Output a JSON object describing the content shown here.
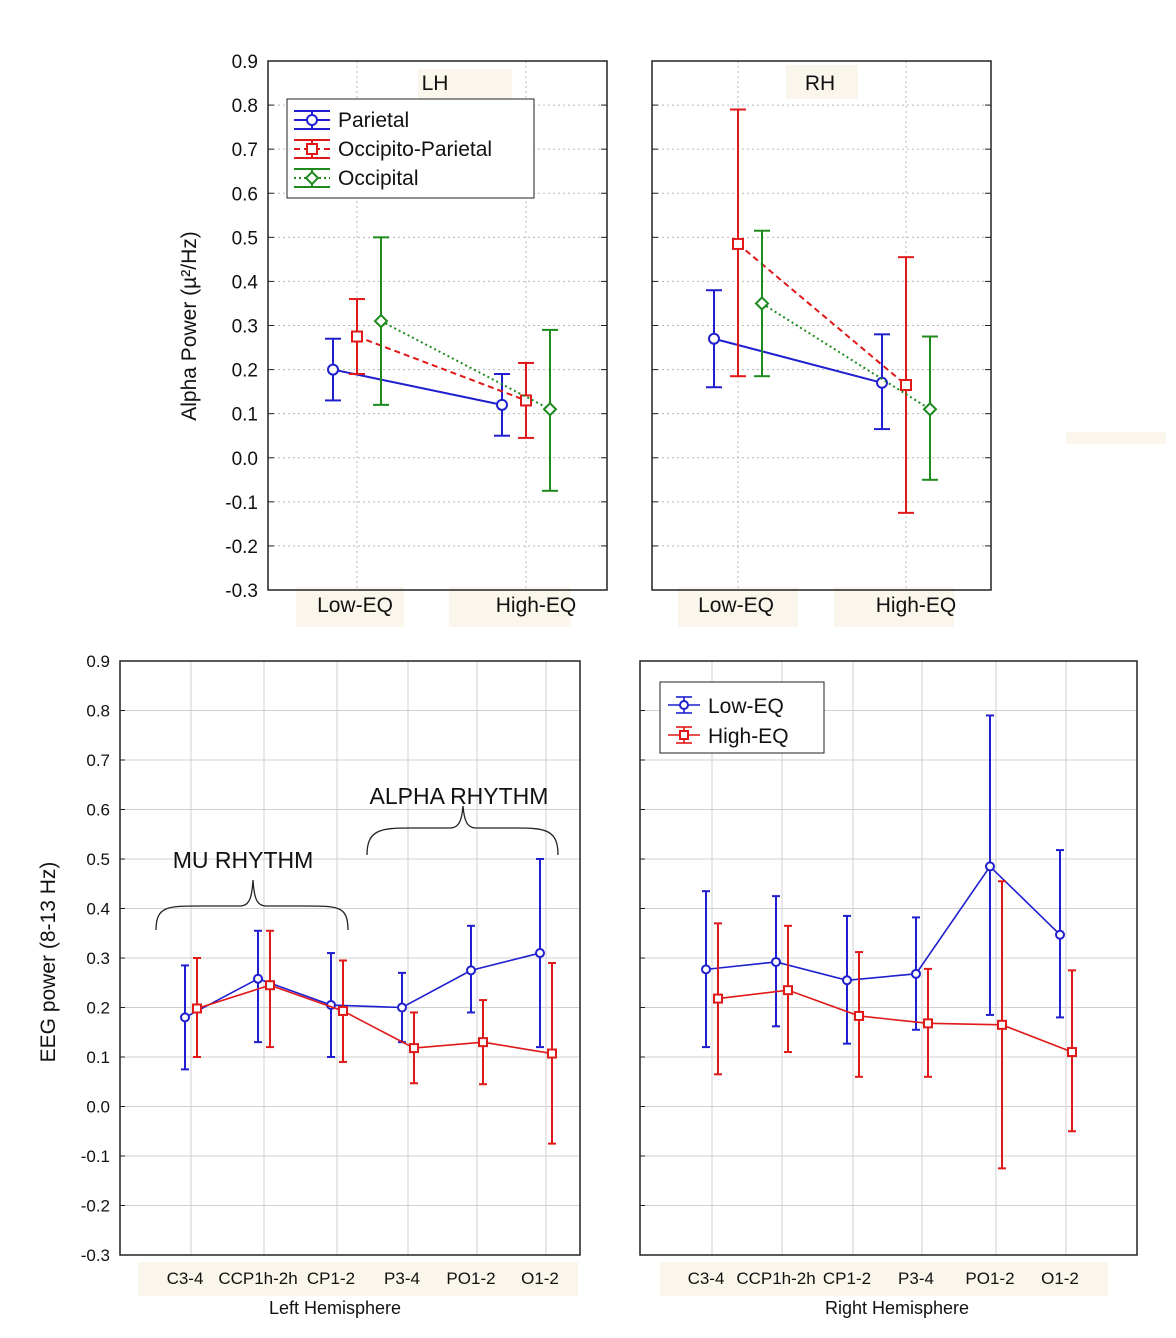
{
  "chart_data": [
    {
      "type": "line",
      "panel": "top",
      "title": "",
      "ylabel": "Alpha Power (µ²/Hz)",
      "ylim": [
        -0.3,
        0.9
      ],
      "yticks": [
        "-0.3",
        "-0.2",
        "-0.1",
        "0.0",
        "0.1",
        "0.2",
        "0.3",
        "0.4",
        "0.5",
        "0.6",
        "0.7",
        "0.8",
        "0.9"
      ],
      "categories": [
        "Low-EQ",
        "High-EQ"
      ],
      "grid": true,
      "legend_position": "top-left",
      "colors": {
        "Parietal": "#1f1fd0",
        "Occipito-Parietal": "#e01818",
        "Occipital": "#1e8a1e"
      },
      "panels": [
        {
          "title": "LH",
          "series": [
            {
              "name": "Parietal",
              "marker": "circle",
              "dash": "solid",
              "values": [
                0.2,
                0.12
              ],
              "lower": [
                0.13,
                0.05
              ],
              "upper": [
                0.27,
                0.19
              ]
            },
            {
              "name": "Occipito-Parietal",
              "marker": "square",
              "dash": "dashed",
              "values": [
                0.275,
                0.13
              ],
              "lower": [
                0.19,
                0.045
              ],
              "upper": [
                0.36,
                0.215
              ]
            },
            {
              "name": "Occipital",
              "marker": "diamond",
              "dash": "dotted",
              "values": [
                0.31,
                0.11
              ],
              "lower": [
                0.12,
                -0.075
              ],
              "upper": [
                0.5,
                0.29
              ]
            }
          ]
        },
        {
          "title": "RH",
          "series": [
            {
              "name": "Parietal",
              "marker": "circle",
              "dash": "solid",
              "values": [
                0.27,
                0.17
              ],
              "lower": [
                0.16,
                0.065
              ],
              "upper": [
                0.38,
                0.28
              ]
            },
            {
              "name": "Occipito-Parietal",
              "marker": "square",
              "dash": "dashed",
              "values": [
                0.485,
                0.165
              ],
              "lower": [
                0.185,
                -0.125
              ],
              "upper": [
                0.79,
                0.455
              ]
            },
            {
              "name": "Occipital",
              "marker": "diamond",
              "dash": "dotted",
              "values": [
                0.35,
                0.11
              ],
              "lower": [
                0.185,
                -0.05
              ],
              "upper": [
                0.515,
                0.275
              ]
            }
          ]
        }
      ]
    },
    {
      "type": "line",
      "panel": "bottom",
      "title": "",
      "ylabel": "EEG power (8-13 Hz)",
      "ylim": [
        -0.3,
        0.9
      ],
      "yticks": [
        "-0.3",
        "-0.2",
        "-0.1",
        "0.0",
        "0.1",
        "0.2",
        "0.3",
        "0.4",
        "0.5",
        "0.6",
        "0.7",
        "0.8",
        "0.9"
      ],
      "categories": [
        "C3-4",
        "CCP1h-2h",
        "CP1-2",
        "P3-4",
        "PO1-2",
        "O1-2"
      ],
      "grid": true,
      "legend_position": "top-left (right panel)",
      "colors": {
        "Low-EQ": "#1f1fd0",
        "High-EQ": "#e01818"
      },
      "annotations": [
        "MU RHYTHM",
        "ALPHA RHYTHM"
      ],
      "panels": [
        {
          "xlabel": "Left Hemisphere",
          "series": [
            {
              "name": "Low-EQ",
              "marker": "circle",
              "values": [
                0.18,
                0.258,
                0.205,
                0.2,
                0.275,
                0.31
              ],
              "lower": [
                0.075,
                0.13,
                0.1,
                0.13,
                0.19,
                0.12
              ],
              "upper": [
                0.285,
                0.355,
                0.31,
                0.27,
                0.365,
                0.5
              ]
            },
            {
              "name": "High-EQ",
              "marker": "square",
              "values": [
                0.198,
                0.245,
                0.193,
                0.118,
                0.13,
                0.107
              ],
              "lower": [
                0.1,
                0.12,
                0.09,
                0.047,
                0.045,
                -0.075
              ],
              "upper": [
                0.3,
                0.355,
                0.295,
                0.19,
                0.215,
                0.29
              ]
            }
          ]
        },
        {
          "xlabel": "Right Hemisphere",
          "series": [
            {
              "name": "Low-EQ",
              "marker": "circle",
              "values": [
                0.277,
                0.292,
                0.255,
                0.268,
                0.485,
                0.347
              ],
              "lower": [
                0.12,
                0.162,
                0.127,
                0.155,
                0.185,
                0.18
              ],
              "upper": [
                0.435,
                0.425,
                0.385,
                0.382,
                0.79,
                0.518
              ]
            },
            {
              "name": "High-EQ",
              "marker": "square",
              "values": [
                0.218,
                0.235,
                0.183,
                0.168,
                0.165,
                0.11
              ],
              "lower": [
                0.065,
                0.11,
                0.06,
                0.06,
                -0.125,
                -0.05
              ],
              "upper": [
                0.37,
                0.365,
                0.312,
                0.278,
                0.455,
                0.275
              ]
            }
          ]
        }
      ]
    }
  ]
}
